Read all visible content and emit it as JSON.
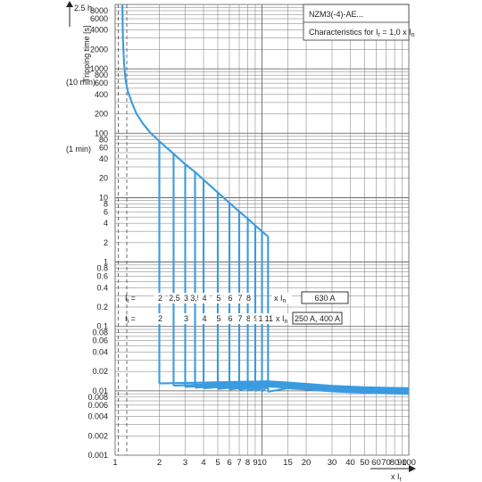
{
  "header": {
    "title": "NZM3(-4)-AE...",
    "subtitle_main": "Characteristics for I",
    "subtitle_sub1": "r",
    "subtitle_mid": " = 1,0 x I",
    "subtitle_sub2": "n"
  },
  "yaxis": {
    "label": "Tripping time [s]",
    "label2": "(10 min)",
    "label3": "(1 min)",
    "top_label": "2.5 h"
  },
  "xaxis": {
    "label_main": "x I",
    "label_sub": "r"
  },
  "setting_rows": [
    {
      "prefix_main": "I",
      "prefix_sub": "i",
      "prefix_eq": " =",
      "values": [
        "2",
        "2,5",
        "3",
        "3,5",
        "4",
        "5",
        "6",
        "7",
        "8"
      ],
      "unit_main": "x I",
      "unit_sub": "n",
      "box": "630 A"
    },
    {
      "prefix_main": "I",
      "prefix_sub": "i",
      "prefix_eq": " =",
      "values": [
        "2",
        "3",
        "4",
        "5",
        "6",
        "7",
        "8",
        "9",
        "10",
        "11"
      ],
      "unit_main": "x I",
      "unit_sub": "n",
      "box": "250 A, 400 A"
    }
  ],
  "colors": {
    "curve": "#3a9be0",
    "grid": "#555555"
  },
  "chart_data": {
    "type": "line",
    "x_scale": "log",
    "y_scale": "log",
    "xlim": [
      1,
      100
    ],
    "ylim": [
      0.001,
      10000
    ],
    "x_ticks": [
      "1",
      "2",
      "3",
      "4",
      "5",
      "6",
      "7",
      "8",
      "9",
      "10",
      "15",
      "20",
      "30",
      "40",
      "50",
      "60",
      "70",
      "80",
      "90",
      "100"
    ],
    "y_ticks": [
      "8000",
      "6000",
      "4000",
      "2000",
      "1000",
      "800",
      "600",
      "400",
      "200",
      "100",
      "80",
      "60",
      "40",
      "20",
      "10",
      "8",
      "6",
      "4",
      "2",
      "1",
      "0.8",
      "0.6",
      "0.4",
      "0.2",
      "0.1",
      "0.08",
      "0.06",
      "0.04",
      "0.02",
      "0.01",
      "0.008",
      "0.006",
      "0.004",
      "0.002",
      "0.001"
    ],
    "overload_curve": {
      "x": [
        1.12,
        1.13,
        1.15,
        1.18,
        1.22,
        1.3,
        1.4,
        1.55,
        1.75,
        2.0,
        2.5,
        3.0,
        3.5,
        4.0,
        5.0,
        6.0,
        7.0,
        8.0,
        9.0,
        10.0,
        11.0
      ],
      "y": [
        10000,
        3000,
        1200,
        650,
        450,
        300,
        200,
        140,
        100,
        75,
        48,
        33,
        25,
        19,
        12,
        8.3,
        6.1,
        4.7,
        3.7,
        3.0,
        2.5
      ]
    },
    "short_circuit_pickups": [
      2,
      2.5,
      3,
      3.5,
      4,
      5,
      6,
      7,
      8,
      9,
      10,
      11
    ],
    "instantaneous_tail": {
      "x": [
        11,
        15,
        20,
        30,
        50,
        100
      ],
      "y": [
        0.0115,
        0.011,
        0.0105,
        0.0098,
        0.0093,
        0.009
      ]
    },
    "pickup_step_times": {
      "x": [
        2,
        2.5,
        3,
        3.5,
        4,
        5,
        6,
        7,
        8,
        9,
        10,
        11
      ],
      "y": [
        0.013,
        0.012,
        0.0115,
        0.0112,
        0.011,
        0.0107,
        0.0105,
        0.0103,
        0.0101,
        0.01,
        0.0098,
        0.0097
      ]
    }
  }
}
